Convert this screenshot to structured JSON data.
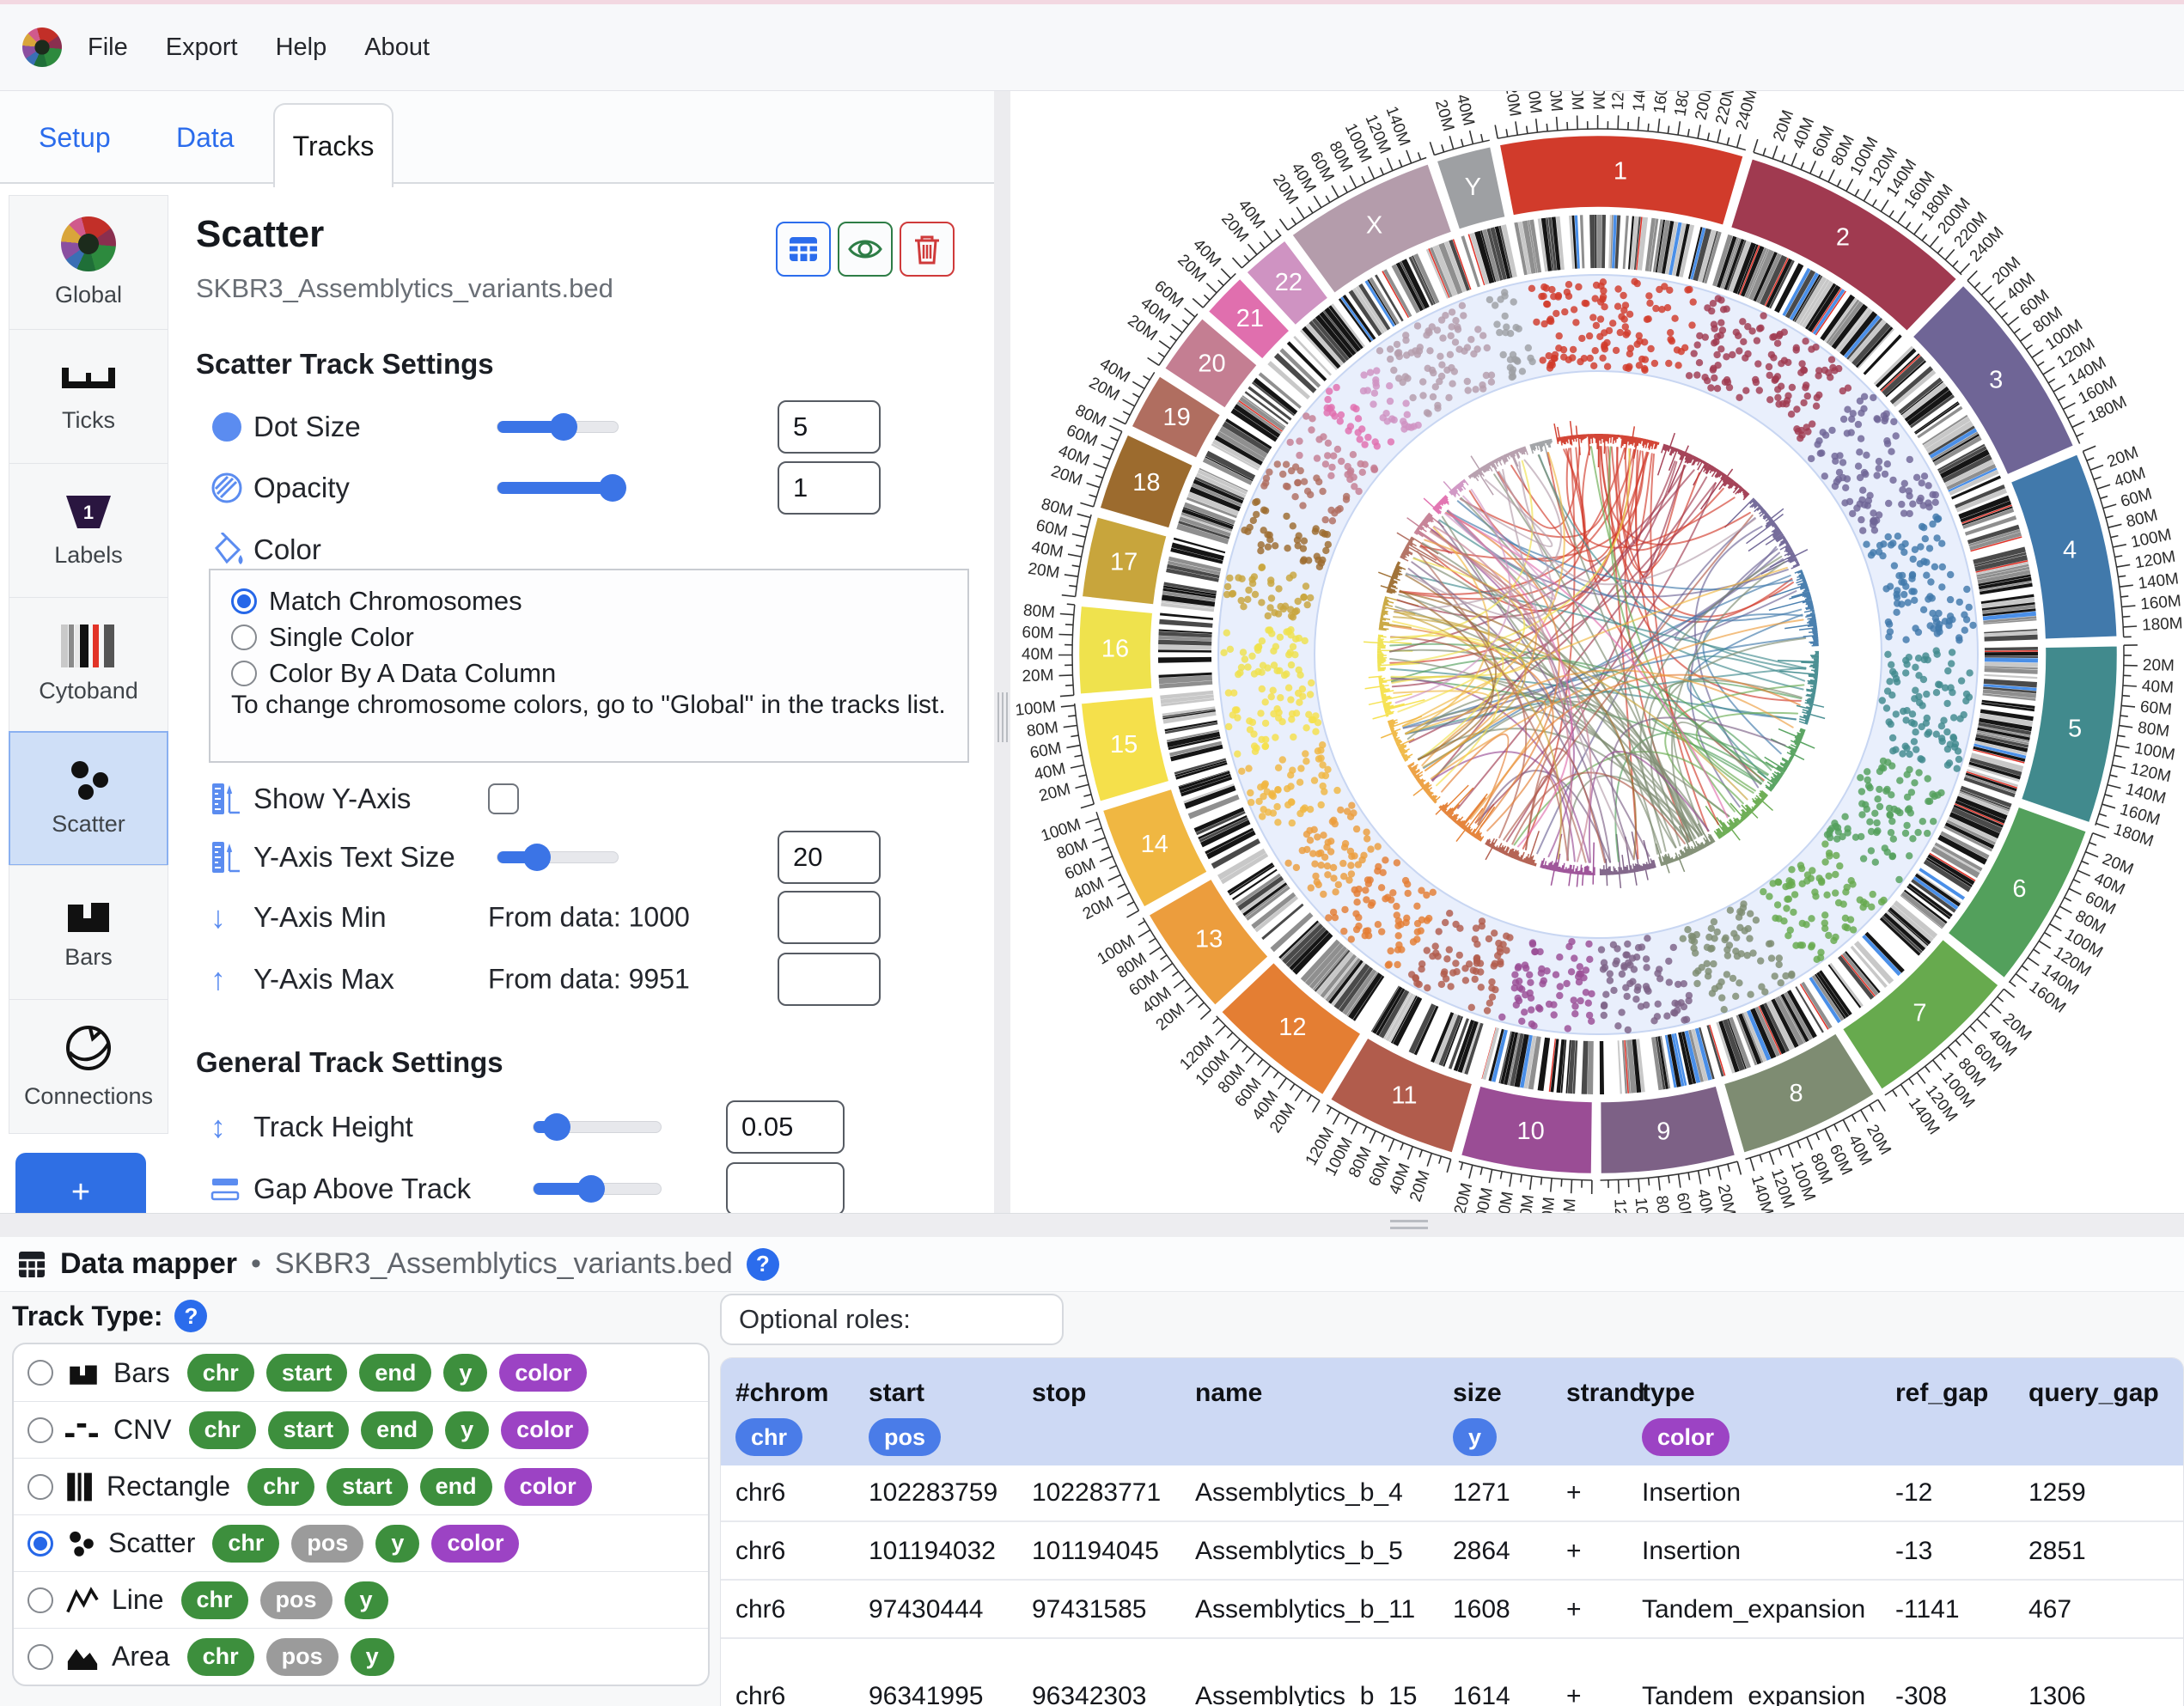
{
  "menu": {
    "items": [
      "File",
      "Export",
      "Help",
      "About"
    ]
  },
  "tabs": [
    {
      "label": "Setup",
      "active": false
    },
    {
      "label": "Data",
      "active": false
    },
    {
      "label": "Tracks",
      "active": true
    }
  ],
  "sidebar": {
    "items": [
      {
        "label": "Global"
      },
      {
        "label": "Ticks"
      },
      {
        "label": "Labels"
      },
      {
        "label": "Cytoband"
      },
      {
        "label": "Scatter",
        "active": true
      },
      {
        "label": "Bars"
      },
      {
        "label": "Connections"
      }
    ],
    "add_label": "+"
  },
  "panel": {
    "title": "Scatter",
    "subtitle": "SKBR3_Assemblytics_variants.bed",
    "section1": "Scatter Track Settings",
    "dot_size": {
      "label": "Dot Size",
      "value": "5",
      "fraction": 0.55
    },
    "opacity": {
      "label": "Opacity",
      "value": "1",
      "fraction": 0.96
    },
    "color": {
      "label": "Color",
      "options": [
        "Match Chromosomes",
        "Single Color",
        "Color By A Data Column"
      ],
      "selected": "Match Chromosomes",
      "note": "To change chromosome colors, go to \"Global\" in the tracks list."
    },
    "show_y_axis": {
      "label": "Show Y-Axis",
      "checked": false
    },
    "y_text_size": {
      "label": "Y-Axis Text Size",
      "value": "20",
      "fraction": 0.33
    },
    "y_min": {
      "label": "Y-Axis Min",
      "hint": "From data: 1000",
      "value": ""
    },
    "y_max": {
      "label": "Y-Axis Max",
      "hint": "From data: 9951",
      "value": ""
    },
    "section2": "General Track Settings",
    "track_height": {
      "label": "Track Height",
      "value": "0.05",
      "fraction": 0.18
    },
    "gap_above": {
      "label": "Gap Above Track",
      "value": "",
      "fraction": 0.45
    },
    "arrows": {
      "down": "↓",
      "up": "↑",
      "updown": "↕"
    }
  },
  "datamapper": {
    "title": "Data mapper",
    "separator": "•",
    "file": "SKBR3_Assemblytics_variants.bed",
    "help": "?",
    "track_type_label": "Track Type:",
    "options": [
      {
        "label": "Bars",
        "badges": [
          {
            "t": "chr",
            "k": "green"
          },
          {
            "t": "start",
            "k": "green"
          },
          {
            "t": "end",
            "k": "green"
          },
          {
            "t": "y",
            "k": "green"
          },
          {
            "t": "color",
            "k": "purple"
          }
        ],
        "selected": false
      },
      {
        "label": "CNV",
        "badges": [
          {
            "t": "chr",
            "k": "green"
          },
          {
            "t": "start",
            "k": "green"
          },
          {
            "t": "end",
            "k": "green"
          },
          {
            "t": "y",
            "k": "green"
          },
          {
            "t": "color",
            "k": "purple"
          }
        ],
        "selected": false
      },
      {
        "label": "Rectangle",
        "badges": [
          {
            "t": "chr",
            "k": "green"
          },
          {
            "t": "start",
            "k": "green"
          },
          {
            "t": "end",
            "k": "green"
          },
          {
            "t": "color",
            "k": "purple"
          }
        ],
        "selected": false
      },
      {
        "label": "Scatter",
        "badges": [
          {
            "t": "chr",
            "k": "green"
          },
          {
            "t": "pos",
            "k": "gray"
          },
          {
            "t": "y",
            "k": "green"
          },
          {
            "t": "color",
            "k": "purple"
          }
        ],
        "selected": true
      },
      {
        "label": "Line",
        "badges": [
          {
            "t": "chr",
            "k": "green"
          },
          {
            "t": "pos",
            "k": "gray"
          },
          {
            "t": "y",
            "k": "green"
          }
        ],
        "selected": false
      },
      {
        "label": "Area",
        "badges": [
          {
            "t": "chr",
            "k": "green"
          },
          {
            "t": "pos",
            "k": "gray"
          },
          {
            "t": "y",
            "k": "green"
          }
        ],
        "selected": false
      }
    ],
    "optional_roles_label": "Optional roles:",
    "table": {
      "columns": [
        "#chrom",
        "start",
        "stop",
        "name",
        "size",
        "strand",
        "type",
        "ref_gap",
        "query_gap"
      ],
      "column_badges": [
        {
          "column": "#chrom",
          "t": "chr",
          "k": "blue"
        },
        {
          "column": "start",
          "t": "pos",
          "k": "blue"
        },
        {
          "column": "size",
          "t": "y",
          "k": "blue"
        },
        {
          "column": "type",
          "t": "color",
          "k": "purple"
        }
      ],
      "rows": [
        [
          "chr6",
          "102283759",
          "102283771",
          "Assemblytics_b_4",
          "1271",
          "+",
          "Insertion",
          "-12",
          "1259"
        ],
        [
          "chr6",
          "101194032",
          "101194045",
          "Assemblytics_b_5",
          "2864",
          "+",
          "Insertion",
          "-13",
          "2851"
        ],
        [
          "chr6",
          "97430444",
          "97431585",
          "Assemblytics_b_11",
          "1608",
          "+",
          "Tandem_expansion",
          "-1141",
          "467"
        ],
        [
          "chr6",
          "96341995",
          "96342303",
          "Assemblytics_b_15",
          "1614",
          "+",
          "Tandem_expansion",
          "-308",
          "1306"
        ]
      ]
    }
  },
  "chart_data": {
    "type": "circos",
    "tracks": [
      "ticks",
      "chromosome-ring",
      "cytoband",
      "scatter",
      "bars",
      "connections"
    ],
    "tick_major_mb": 20,
    "tick_minor_mb": 10,
    "tick_label_suffix": "M",
    "scatter_track": {
      "file": "SKBR3_Assemblytics_variants.bed",
      "y_from_data_min": 1000,
      "y_from_data_max": 9951
    },
    "band_color": "#e9effc",
    "band_border": "#c8d6f2",
    "chromosomes": [
      {
        "name": "1",
        "size_mb": 249,
        "color": "#d13b2b"
      },
      {
        "name": "2",
        "size_mb": 242,
        "color": "#a03a50"
      },
      {
        "name": "3",
        "size_mb": 198,
        "color": "#6f6596"
      },
      {
        "name": "4",
        "size_mb": 190,
        "color": "#4179ab"
      },
      {
        "name": "5",
        "size_mb": 182,
        "color": "#418a8d"
      },
      {
        "name": "6",
        "size_mb": 171,
        "color": "#53a05c"
      },
      {
        "name": "7",
        "size_mb": 159,
        "color": "#67aa4e"
      },
      {
        "name": "8",
        "size_mb": 145,
        "color": "#7e8c72"
      },
      {
        "name": "9",
        "size_mb": 138,
        "color": "#7d6186"
      },
      {
        "name": "10",
        "size_mb": 134,
        "color": "#9a4d95"
      },
      {
        "name": "11",
        "size_mb": 135,
        "color": "#b15c4c"
      },
      {
        "name": "12",
        "size_mb": 133,
        "color": "#e47e33"
      },
      {
        "name": "13",
        "size_mb": 114,
        "color": "#ec9d3d"
      },
      {
        "name": "14",
        "size_mb": 107,
        "color": "#f0b742"
      },
      {
        "name": "15",
        "size_mb": 102,
        "color": "#f5e04b"
      },
      {
        "name": "16",
        "size_mb": 90,
        "color": "#efe24d"
      },
      {
        "name": "17",
        "size_mb": 83,
        "color": "#c8a53c"
      },
      {
        "name": "18",
        "size_mb": 80,
        "color": "#9c6b2e"
      },
      {
        "name": "19",
        "size_mb": 59,
        "color": "#b06e60"
      },
      {
        "name": "20",
        "size_mb": 64,
        "color": "#c47e92"
      },
      {
        "name": "21",
        "size_mb": 47,
        "color": "#e06fae"
      },
      {
        "name": "22",
        "size_mb": 51,
        "color": "#cf93c2"
      },
      {
        "name": "X",
        "size_mb": 156,
        "color": "#b49cab"
      },
      {
        "name": "Y",
        "size_mb": 57,
        "color": "#9ea0a3"
      }
    ],
    "render": {
      "seed": 11,
      "start_deg": -11,
      "gap_deg": 0.9,
      "dots_per_mb": 0.5,
      "connection_hubs": [
        "1",
        "8"
      ]
    }
  }
}
